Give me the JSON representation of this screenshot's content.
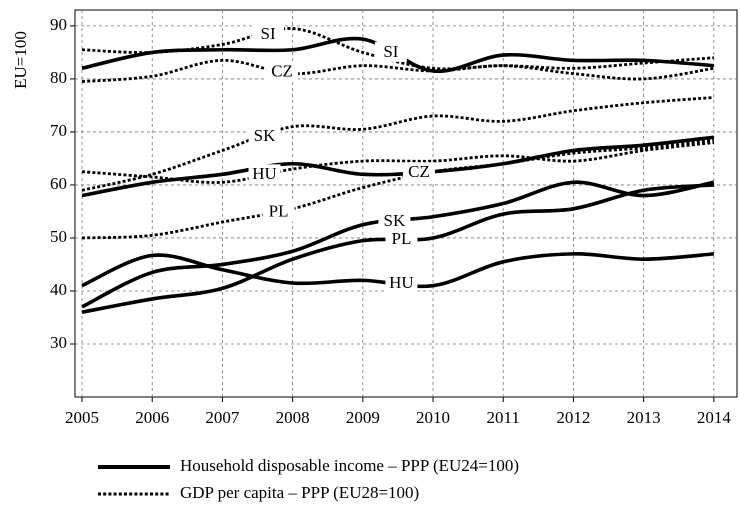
{
  "chart_data": {
    "type": "line",
    "y_label": "EU=100",
    "x": [
      2005,
      2006,
      2007,
      2008,
      2009,
      2010,
      2011,
      2012,
      2013,
      2014
    ],
    "xlim": [
      2004.9,
      2014.33
    ],
    "xticks": [
      2005,
      2006,
      2007,
      2008,
      2009,
      2010,
      2011,
      2012,
      2013,
      2014
    ],
    "ylim": [
      20,
      93
    ],
    "yticks": [
      30,
      40,
      50,
      60,
      70,
      80,
      90
    ],
    "grid": true,
    "legend": [
      {
        "label": "Household disposable income – PPP (EU24=100)",
        "style": "solid"
      },
      {
        "label": "GDP per capita – PPP (EU28=100)",
        "style": "dotted"
      }
    ],
    "series": [
      {
        "name": "SI",
        "style": "solid",
        "color": "#000000",
        "values": [
          82,
          85,
          85.5,
          85.5,
          87.5,
          81.5,
          84.5,
          83.5,
          83.5,
          82.5
        ]
      },
      {
        "name": "CZ",
        "style": "solid",
        "color": "#000000",
        "values": [
          58,
          60.5,
          62,
          64,
          62,
          62.5,
          64,
          66.5,
          67.5,
          69
        ]
      },
      {
        "name": "SK",
        "style": "solid",
        "color": "#000000",
        "values": [
          37,
          43.5,
          45,
          47.5,
          52.5,
          54,
          56.5,
          60.5,
          58,
          60.5
        ]
      },
      {
        "name": "PL",
        "style": "solid",
        "color": "#000000",
        "values": [
          36,
          38.5,
          40.5,
          46,
          49.5,
          50,
          54.5,
          55.5,
          59,
          60
        ]
      },
      {
        "name": "HU",
        "style": "solid",
        "color": "#000000",
        "values": [
          41,
          46.7,
          44,
          41.5,
          42,
          41,
          45.5,
          47,
          46,
          47
        ]
      },
      {
        "name": "SI",
        "style": "dotted",
        "color": "#000000",
        "values": [
          85.5,
          85,
          86.5,
          89.5,
          85,
          82,
          82.5,
          82,
          83,
          84
        ]
      },
      {
        "name": "CZ",
        "style": "dotted",
        "color": "#000000",
        "values": [
          79.5,
          80.5,
          83.5,
          81,
          82.5,
          81.5,
          82.5,
          81,
          80,
          82
        ]
      },
      {
        "name": "SK",
        "style": "dotted",
        "color": "#000000",
        "values": [
          59,
          62,
          66.5,
          71,
          70.5,
          73,
          72,
          74,
          75.5,
          76.5
        ]
      },
      {
        "name": "HU",
        "style": "dotted",
        "color": "#000000",
        "values": [
          62.5,
          61.5,
          60.5,
          63,
          64.5,
          64.5,
          65.5,
          64.5,
          66.5,
          68
        ]
      },
      {
        "name": "PL",
        "style": "dotted",
        "color": "#000000",
        "values": [
          50,
          50.5,
          53,
          55.5,
          59.5,
          62.5,
          64,
          66,
          67,
          68.5
        ]
      }
    ]
  }
}
